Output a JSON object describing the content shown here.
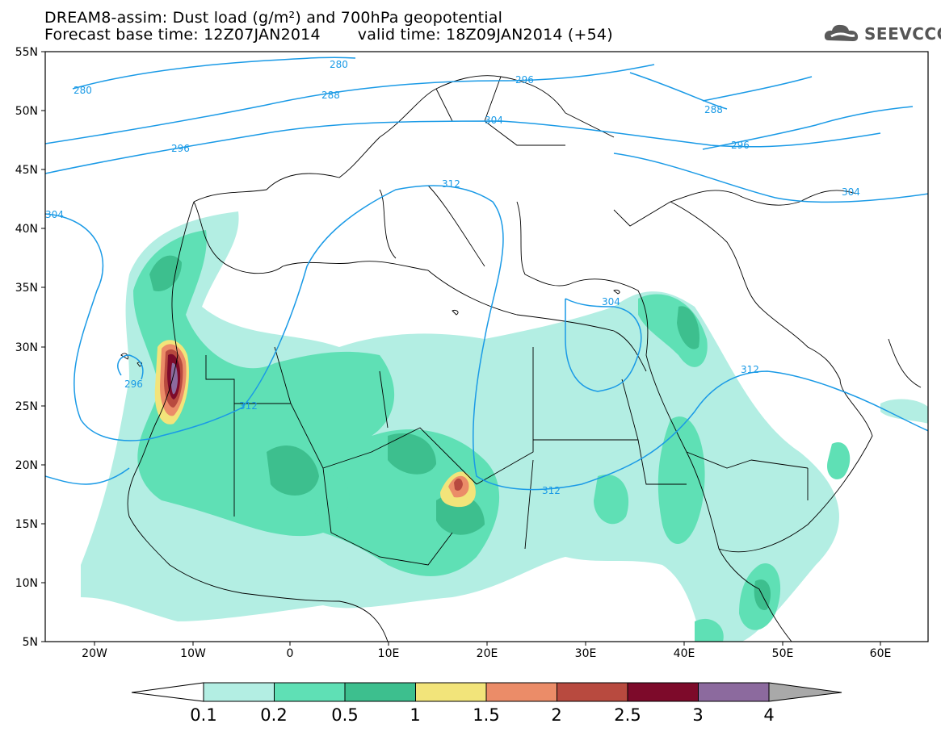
{
  "header": {
    "line1": "DREAM8-assim: Dust load (g/m²) and 700hPa geopotential",
    "base_time": "Forecast base time: 12Z07JAN2014",
    "valid_time": "valid time: 18Z09JAN2014 (+54)"
  },
  "logo": {
    "text": "SEEVCCC",
    "icon": "cloud-icon"
  },
  "axes": {
    "lat_labels": [
      "55N",
      "50N",
      "45N",
      "40N",
      "35N",
      "30N",
      "25N",
      "20N",
      "15N",
      "10N",
      "5N"
    ],
    "lon_labels": [
      "20W",
      "10W",
      "0",
      "10E",
      "20E",
      "30E",
      "40E",
      "50E",
      "60E"
    ]
  },
  "contour_labels": [
    "280",
    "280",
    "288",
    "296",
    "288",
    "296",
    "304",
    "296",
    "312",
    "304",
    "304",
    "296",
    "312",
    "304",
    "312",
    "312"
  ],
  "colorbar": {
    "tick_labels": [
      "0.1",
      "0.2",
      "0.5",
      "1",
      "1.5",
      "2",
      "2.5",
      "3",
      "4"
    ],
    "colors": [
      "#b3eee3",
      "#5fe0b5",
      "#3dbf8e",
      "#f2e47a",
      "#eb8c68",
      "#b84a3f",
      "#7d0a2a",
      "#8c6a9e",
      "#a9a9a9"
    ]
  },
  "colors": {
    "contour": "#1a9ae6",
    "coast": "#000000"
  }
}
